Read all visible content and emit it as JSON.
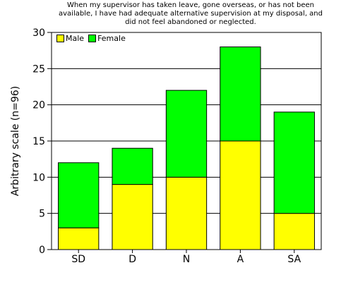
{
  "chart_data": {
    "type": "bar",
    "stacked": true,
    "title_lines": [
      "When my supervisor has taken leave, gone overseas, or has not been",
      "available, I have had adequate alternative supervision at my disposal, and",
      "did not feel abandoned or neglected."
    ],
    "xlabel": "",
    "ylabel": "Arbitrary scale (n=96)",
    "ylim": [
      0,
      30
    ],
    "yticks": [
      0,
      5,
      10,
      15,
      20,
      25,
      30
    ],
    "grid": true,
    "legend_position": "top-left",
    "categories": [
      "SD",
      "D",
      "N",
      "A",
      "SA"
    ],
    "series": [
      {
        "name": "Male",
        "color": "#ffff00",
        "values": [
          3,
          9,
          10,
          15,
          5
        ]
      },
      {
        "name": "Female",
        "color": "#00ff00",
        "values": [
          9,
          5,
          12,
          13,
          14
        ]
      }
    ]
  }
}
